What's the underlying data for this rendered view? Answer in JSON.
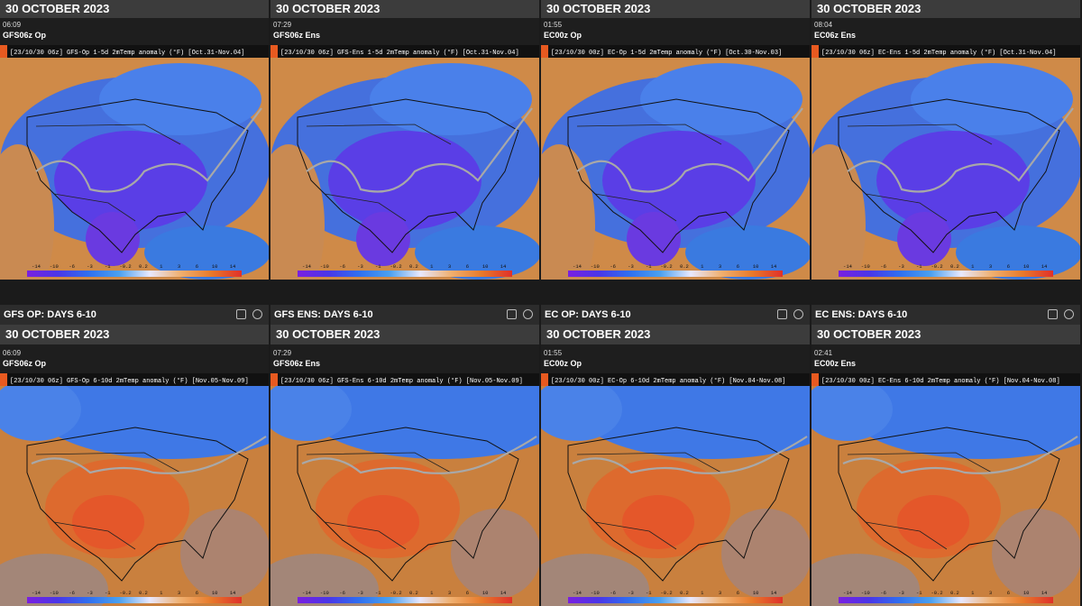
{
  "rows": [
    {
      "panels": [
        {
          "date": "30 OCTOBER 2023",
          "time": "06:09",
          "model": "GFS06z Op",
          "map_title": "[23/10/30 06z] GFS-Op 1-5d 2mTemp anomaly (°F) [Oct.31-Nov.04]"
        },
        {
          "date": "30 OCTOBER 2023",
          "time": "07:29",
          "model": "GFS06z Ens",
          "map_title": "[23/10/30 06z] GFS-Ens 1-5d 2mTemp anomaly (°F) [Oct.31-Nov.04]"
        },
        {
          "date": "30 OCTOBER 2023",
          "time": "01:55",
          "model": "EC00z Op",
          "map_title": "[23/10/30 00z] EC-Op 1-5d 2mTemp anomaly (°F) [Oct.30-Nov.03]"
        },
        {
          "date": "30 OCTOBER 2023",
          "time": "08:04",
          "model": "EC06z Ens",
          "map_title": "[23/10/30 06z] EC-Ens 1-5d 2mTemp anomaly (°F) [Oct.31-Nov.04]"
        }
      ]
    },
    {
      "panels": [
        {
          "header": "GFS OP: DAYS 6-10",
          "date": "30 OCTOBER 2023",
          "time": "06:09",
          "model": "GFS06z Op",
          "map_title": "[23/10/30 06z] GFS-Op 6-10d 2mTemp anomaly (°F) [Nov.05-Nov.09]"
        },
        {
          "header": "GFS ENS: DAYS 6-10",
          "date": "30 OCTOBER 2023",
          "time": "07:29",
          "model": "GFS06z Ens",
          "map_title": "[23/10/30 06z] GFS-Ens 6-10d 2mTemp anomaly (°F) [Nov.05-Nov.09]"
        },
        {
          "header": "EC OP: DAYS 6-10",
          "date": "30 OCTOBER 2023",
          "time": "01:55",
          "model": "EC00z Op",
          "map_title": "[23/10/30 00z] EC-Op 6-10d 2mTemp anomaly (°F) [Nov.04-Nov.08]"
        },
        {
          "header": "EC ENS: DAYS 6-10",
          "date": "30 OCTOBER 2023",
          "time": "02:41",
          "model": "EC00z Ens",
          "map_title": "[23/10/30 00z] EC-Ens 6-10d 2mTemp anomaly (°F) [Nov.04-Nov.08]"
        }
      ]
    }
  ],
  "colorbar_labels": [
    "-14",
    "-10",
    "-6",
    "-3",
    "-1",
    "-0.2",
    "0.2",
    "1",
    "3",
    "6",
    "10",
    "14"
  ]
}
